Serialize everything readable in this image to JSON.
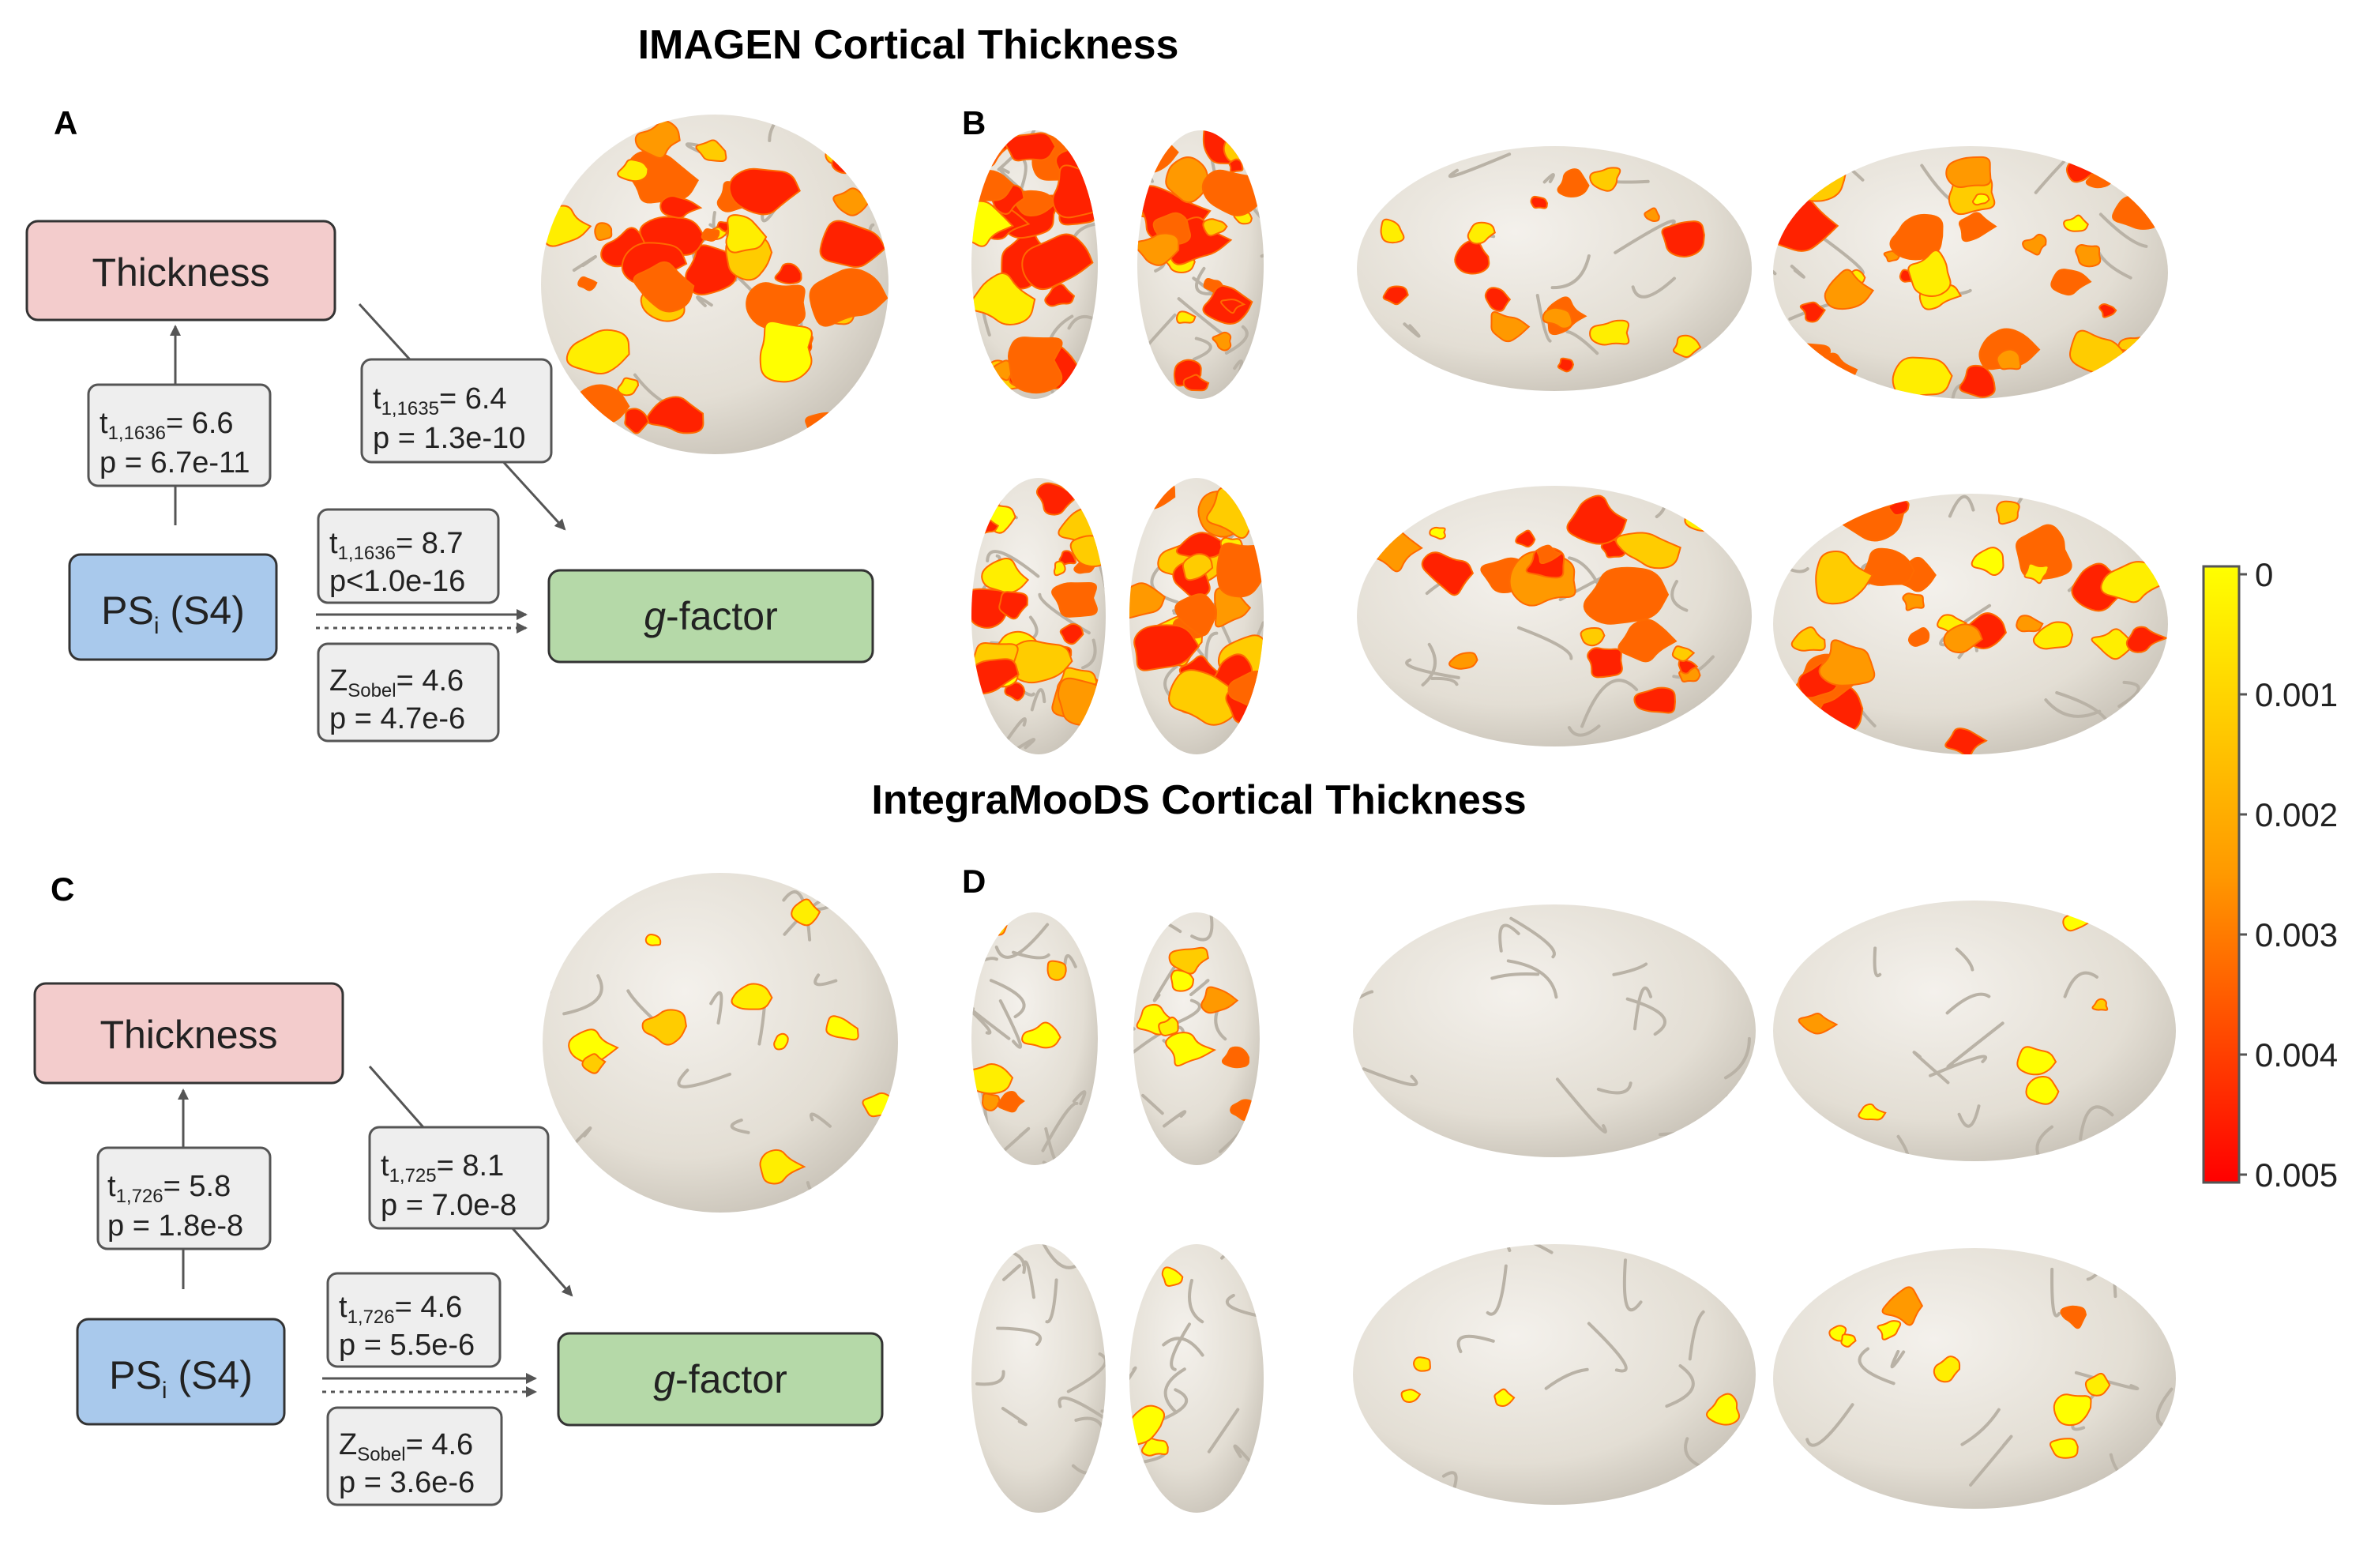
{
  "sections": [
    {
      "title": "IMAGEN Cortical Thickness",
      "panel_mediation": "A",
      "panel_brains": "B",
      "box_top": "Thickness",
      "box_left": {
        "main": "PS",
        "sub": "i",
        "tail": " (S4)"
      },
      "box_right": {
        "italic": "g",
        "rest": "-factor"
      },
      "stat_a": {
        "t": "t",
        "t_sub": "1,1636",
        "t_val": "= 6.6",
        "p": "p = 6.7e-11"
      },
      "stat_b": {
        "t": "t",
        "t_sub": "1,1635",
        "t_val": "= 6.4",
        "p": "p = 1.3e-10"
      },
      "stat_c": {
        "t": "t",
        "t_sub": "1,1636",
        "t_val": "= 8.7",
        "p": "p<1.0e-16"
      },
      "stat_sobel": {
        "t": "Z",
        "t_sub": "Sobel",
        "t_val": "= 4.6",
        "p": "p = 4.7e-6"
      }
    },
    {
      "title": "IntegraMooDS Cortical Thickness",
      "panel_mediation": "C",
      "panel_brains": "D",
      "box_top": "Thickness",
      "box_left": {
        "main": "PS",
        "sub": "i",
        "tail": " (S4)"
      },
      "box_right": {
        "italic": "g",
        "rest": "-factor"
      },
      "stat_a": {
        "t": "t",
        "t_sub": "1,726",
        "t_val": "= 5.8",
        "p": "p = 1.8e-8"
      },
      "stat_b": {
        "t": "t",
        "t_sub": "1,725",
        "t_val": "= 8.1",
        "p": "p = 7.0e-8"
      },
      "stat_c": {
        "t": "t",
        "t_sub": "1,726",
        "t_val": "= 4.6",
        "p": "p = 5.5e-6"
      },
      "stat_sobel": {
        "t": "Z",
        "t_sub": "Sobel",
        "t_val": "= 4.6",
        "p": "p = 3.6e-6"
      }
    }
  ],
  "colorbar": {
    "ticks": [
      "0",
      "0.001",
      "0.002",
      "0.003",
      "0.004",
      "0.005"
    ],
    "color_top": "#ffff00",
    "color_mid": "#ff9900",
    "color_bottom": "#ff0000"
  },
  "colors": {
    "thickness_box": "#f3cccc",
    "ps_box": "#a9c9ec",
    "gfactor_box": "#b5d9a8",
    "stat_box": "#eeeeee",
    "brain": "#e6e2da",
    "arrow": "#555555"
  }
}
